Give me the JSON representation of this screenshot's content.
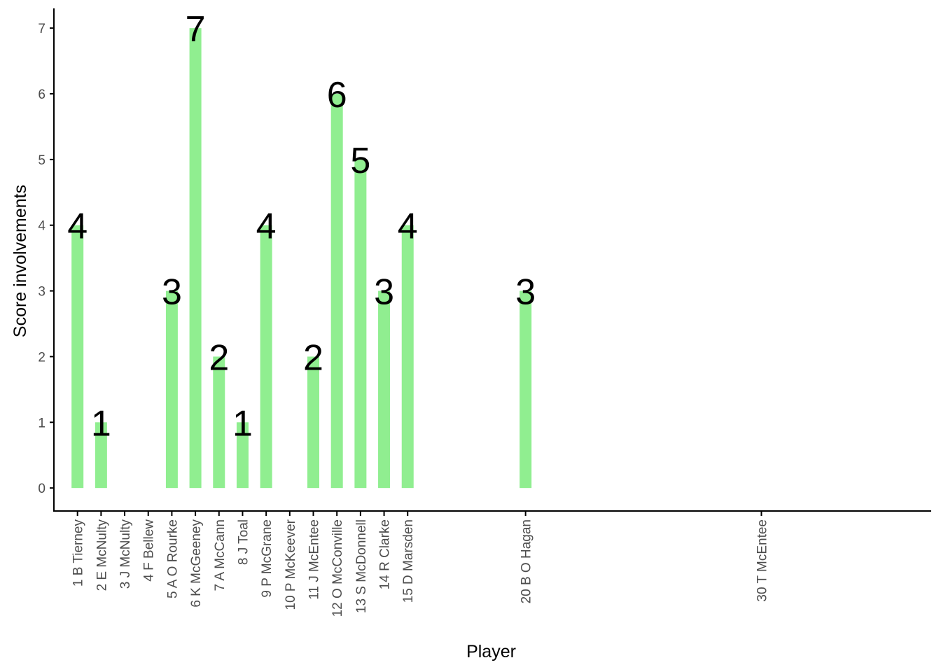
{
  "chart_data": {
    "type": "bar",
    "xlabel": "Player",
    "ylabel": "Score involvements",
    "ylim": [
      -0.35,
      7.3
    ],
    "yticks": [
      0,
      1,
      2,
      3,
      4,
      5,
      6,
      7
    ],
    "x_axis_numeric_range": [
      0,
      37.2
    ],
    "bar_color": "#90ee90",
    "axis_color": "#000000",
    "grid": false,
    "legend": "none",
    "bars": [
      {
        "pos": 1,
        "label": "1 B Tierney",
        "value": 4
      },
      {
        "pos": 2,
        "label": "2 E McNulty",
        "value": 1
      },
      {
        "pos": 3,
        "label": "3 J McNulty",
        "value": null
      },
      {
        "pos": 4,
        "label": "4 F Bellew",
        "value": null
      },
      {
        "pos": 5,
        "label": "5 A O Rourke",
        "value": 3
      },
      {
        "pos": 6,
        "label": "6 K McGeeney",
        "value": 7
      },
      {
        "pos": 7,
        "label": "7 A McCann",
        "value": 2
      },
      {
        "pos": 8,
        "label": "8 J Toal",
        "value": 1
      },
      {
        "pos": 9,
        "label": "9 P McGrane",
        "value": 4
      },
      {
        "pos": 10,
        "label": "10 P McKeever",
        "value": null
      },
      {
        "pos": 11,
        "label": "11 J McEntee",
        "value": 2
      },
      {
        "pos": 12,
        "label": "12 O McConville",
        "value": 6
      },
      {
        "pos": 13,
        "label": "13 S McDonnell",
        "value": 5
      },
      {
        "pos": 14,
        "label": "14 R Clarke",
        "value": 3
      },
      {
        "pos": 15,
        "label": "15 D Marsden",
        "value": 4
      },
      {
        "pos": 20,
        "label": "20 B O Hagan",
        "value": 3
      },
      {
        "pos": 30,
        "label": "30 T McEntee",
        "value": null
      }
    ]
  }
}
